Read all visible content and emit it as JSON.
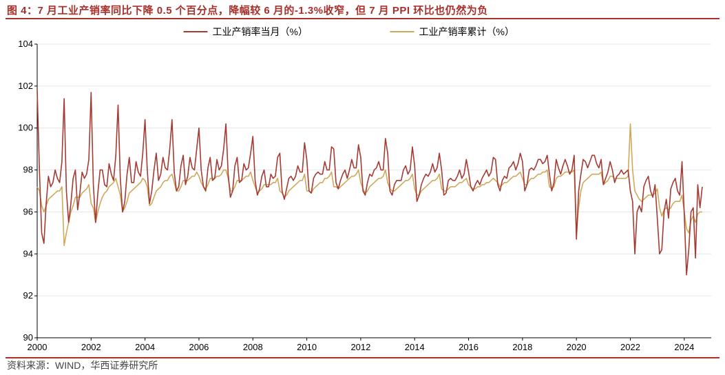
{
  "title": "图 4：7 月工业产销率同比下降 0.5 个百分点，降幅较 6 月的-1.3%收窄，但 7 月 PPI 环比也仍然为负",
  "source": "资料来源：WIND，华西证券研究所",
  "chart": {
    "type": "line",
    "background_color": "#ffffff",
    "legend": {
      "position": "top-center",
      "items": [
        {
          "label": "工业产销率当月（%）",
          "color": "#a43a33"
        },
        {
          "label": "工业产销率累计（%）",
          "color": "#cfa85a"
        }
      ],
      "fontsize": 14
    },
    "y_axis": {
      "lim": [
        90,
        104
      ],
      "ticks": [
        90,
        92,
        94,
        96,
        98,
        100,
        102,
        104
      ],
      "grid_color": "#e6e6e6",
      "axis_color": "#000000",
      "fontsize": 13
    },
    "x_axis": {
      "start_year": 2000,
      "end_year": 2025,
      "tick_labels": [
        2000,
        2002,
        2004,
        2006,
        2008,
        2010,
        2012,
        2014,
        2016,
        2018,
        2020,
        2022,
        2024
      ],
      "axis_color": "#000000",
      "fontsize": 13
    },
    "series_monthly": {
      "color": "#a43a33",
      "line_width": 1.6,
      "values": [
        101.8,
        98.0,
        95.0,
        94.5,
        96.4,
        97.7,
        97.2,
        97.4,
        98.0,
        97.6,
        97.4,
        98.4,
        101.4,
        97.0,
        95.5,
        96.4,
        97.6,
        98.0,
        96.1,
        96.9,
        97.9,
        97.6,
        97.8,
        98.5,
        101.7,
        97.3,
        95.5,
        96.9,
        98.0,
        98.0,
        97.3,
        97.2,
        98.3,
        97.8,
        97.5,
        98.7,
        101.1,
        97.6,
        96.0,
        96.5,
        97.8,
        98.6,
        97.4,
        97.4,
        98.4,
        97.9,
        97.7,
        98.8,
        100.4,
        98.0,
        96.4,
        97.0,
        98.0,
        98.8,
        97.5,
        97.8,
        98.6,
        98.1,
        98.0,
        99.0,
        100.4,
        97.9,
        97.0,
        97.2,
        98.2,
        98.7,
        97.3,
        97.7,
        98.6,
        98.1,
        98.0,
        99.0,
        100.0,
        98.0,
        97.2,
        97.0,
        98.1,
        98.6,
        97.5,
        97.6,
        98.5,
        98.0,
        98.2,
        99.0,
        100.2,
        97.8,
        96.7,
        97.0,
        98.2,
        98.6,
        97.4,
        97.5,
        98.3,
        98.0,
        98.1,
        98.8,
        99.6,
        97.5,
        96.8,
        97.1,
        97.7,
        98.0,
        97.2,
        97.2,
        97.8,
        97.6,
        97.7,
        98.6,
        98.8,
        97.0,
        96.6,
        97.1,
        97.6,
        97.7,
        97.5,
        97.7,
        98.2,
        97.9,
        97.9,
        99.3,
        98.5,
        97.0,
        96.9,
        97.6,
        97.8,
        97.9,
        97.8,
        97.8,
        98.4,
        98.0,
        98.0,
        99.1,
        99.0,
        97.4,
        97.1,
        97.5,
        97.8,
        98.0,
        97.6,
        98.0,
        98.5,
        98.1,
        98.1,
        99.2,
        98.6,
        97.0,
        96.8,
        97.4,
        97.8,
        97.7,
        98.0,
        98.1,
        98.4,
        98.0,
        98.0,
        99.5,
        98.8,
        97.0,
        96.8,
        97.3,
        97.5,
        97.5,
        97.5,
        98.0,
        98.2,
        97.8,
        98.0,
        99.1,
        98.2,
        96.5,
        96.8,
        97.3,
        97.6,
        97.8,
        97.7,
        97.9,
        98.3,
        97.9,
        98.1,
        98.8,
        98.0,
        96.8,
        96.9,
        97.5,
        97.6,
        97.5,
        97.5,
        97.7,
        98.0,
        97.6,
        97.8,
        98.5,
        97.9,
        97.2,
        97.0,
        97.3,
        97.5,
        97.3,
        97.6,
        97.8,
        98.0,
        97.7,
        97.9,
        98.6,
        98.5,
        97.3,
        97.0,
        97.5,
        97.7,
        97.6,
        98.1,
        98.2,
        98.4,
        98.0,
        98.3,
        98.8,
        98.4,
        97.0,
        97.3,
        98.0,
        98.1,
        98.0,
        98.2,
        98.5,
        98.5,
        98.3,
        98.4,
        98.7,
        97.8,
        97.0,
        97.4,
        98.5,
        98.1,
        97.8,
        98.2,
        98.5,
        98.2,
        97.8,
        98.0,
        98.7,
        94.7,
        97.0,
        97.8,
        98.5,
        98.4,
        98.1,
        98.4,
        98.7,
        98.7,
        98.3,
        98.1,
        98.5,
        97.3,
        97.6,
        97.9,
        98.4,
        98.0,
        97.4,
        97.7,
        97.8,
        98.0,
        97.8,
        97.9,
        98.0,
        97.0,
        96.5,
        94.0,
        96.0,
        96.3,
        96.0,
        97.2,
        97.5,
        97.7,
        97.0,
        96.7,
        97.3,
        95.7,
        94.0,
        94.2,
        96.0,
        96.6,
        95.7,
        97.1,
        97.4,
        97.6,
        97.0,
        96.8,
        98.4,
        95.9,
        93.0,
        94.2,
        96.0,
        96.2,
        93.8,
        97.3,
        96.2,
        97.2
      ]
    },
    "series_cumulative": {
      "color": "#cfa85a",
      "line_width": 1.6,
      "values": [
        97.2,
        97.0,
        96.3,
        96.0,
        96.3,
        96.6,
        96.7,
        96.8,
        96.9,
        97.0,
        97.0,
        97.2,
        94.4,
        95.0,
        95.5,
        96.0,
        96.3,
        96.7,
        96.7,
        96.7,
        96.9,
        97.0,
        97.1,
        97.3,
        96.4,
        96.2,
        95.5,
        96.0,
        96.4,
        96.7,
        96.9,
        97.0,
        97.2,
        97.3,
        97.4,
        97.6,
        97.2,
        96.8,
        96.0,
        96.2,
        96.5,
        96.9,
        97.0,
        97.1,
        97.2,
        97.3,
        97.4,
        97.6,
        97.5,
        97.2,
        96.3,
        96.4,
        96.7,
        97.0,
        97.1,
        97.2,
        97.4,
        97.5,
        97.5,
        97.7,
        97.8,
        97.4,
        97.0,
        97.0,
        97.2,
        97.5,
        97.5,
        97.5,
        97.6,
        97.7,
        97.7,
        97.9,
        97.7,
        97.4,
        97.2,
        97.1,
        97.3,
        97.6,
        97.6,
        97.6,
        97.7,
        97.7,
        97.8,
        98.0,
        98.0,
        97.6,
        97.0,
        97.0,
        97.2,
        97.5,
        97.5,
        97.5,
        97.6,
        97.7,
        97.7,
        97.9,
        97.5,
        97.2,
        96.9,
        97.0,
        97.1,
        97.3,
        97.3,
        97.3,
        97.3,
        97.4,
        97.4,
        97.6,
        97.0,
        96.9,
        96.7,
        96.8,
        97.0,
        97.1,
        97.2,
        97.3,
        97.4,
        97.5,
        97.5,
        97.8,
        97.0,
        97.0,
        96.9,
        97.1,
        97.2,
        97.3,
        97.4,
        97.4,
        97.6,
        97.6,
        97.7,
        97.9,
        97.2,
        97.2,
        97.1,
        97.2,
        97.3,
        97.4,
        97.5,
        97.6,
        97.7,
        97.7,
        97.8,
        98.0,
        97.4,
        97.1,
        96.9,
        97.0,
        97.2,
        97.3,
        97.4,
        97.5,
        97.6,
        97.6,
        97.7,
        98.0,
        97.4,
        97.1,
        97.0,
        97.0,
        97.1,
        97.2,
        97.3,
        97.4,
        97.5,
        97.5,
        97.6,
        97.8,
        97.1,
        96.8,
        96.8,
        97.0,
        97.1,
        97.2,
        97.3,
        97.4,
        97.5,
        97.5,
        97.6,
        97.8,
        97.1,
        97.0,
        97.0,
        97.1,
        97.2,
        97.2,
        97.2,
        97.3,
        97.4,
        97.4,
        97.5,
        97.6,
        97.3,
        97.2,
        97.1,
        97.1,
        97.2,
        97.2,
        97.3,
        97.3,
        97.4,
        97.4,
        97.5,
        97.6,
        97.5,
        97.4,
        97.2,
        97.3,
        97.4,
        97.4,
        97.5,
        97.6,
        97.7,
        97.7,
        97.8,
        97.9,
        97.6,
        97.3,
        97.3,
        97.5,
        97.6,
        97.6,
        97.7,
        97.8,
        97.8,
        97.9,
        97.9,
        98.0,
        97.2,
        97.1,
        97.2,
        97.6,
        97.7,
        97.7,
        97.8,
        97.9,
        97.9,
        97.9,
        97.9,
        98.0,
        95.0,
        96.2,
        97.0,
        97.4,
        97.5,
        97.6,
        97.7,
        97.8,
        97.8,
        97.8,
        97.8,
        97.9,
        97.3,
        97.4,
        97.5,
        97.7,
        97.7,
        97.6,
        97.6,
        97.6,
        97.6,
        97.6,
        97.6,
        97.7,
        100.2,
        98.0,
        97.0,
        96.8,
        96.6,
        96.5,
        96.6,
        96.7,
        96.8,
        96.8,
        96.8,
        96.9,
        97.1,
        96.2,
        95.8,
        96.1,
        96.2,
        96.1,
        96.2,
        96.4,
        96.5,
        96.5,
        96.5,
        96.8,
        96.0,
        95.2,
        95.0,
        95.6,
        95.8,
        95.5,
        95.9,
        96.0,
        96.0
      ]
    }
  }
}
